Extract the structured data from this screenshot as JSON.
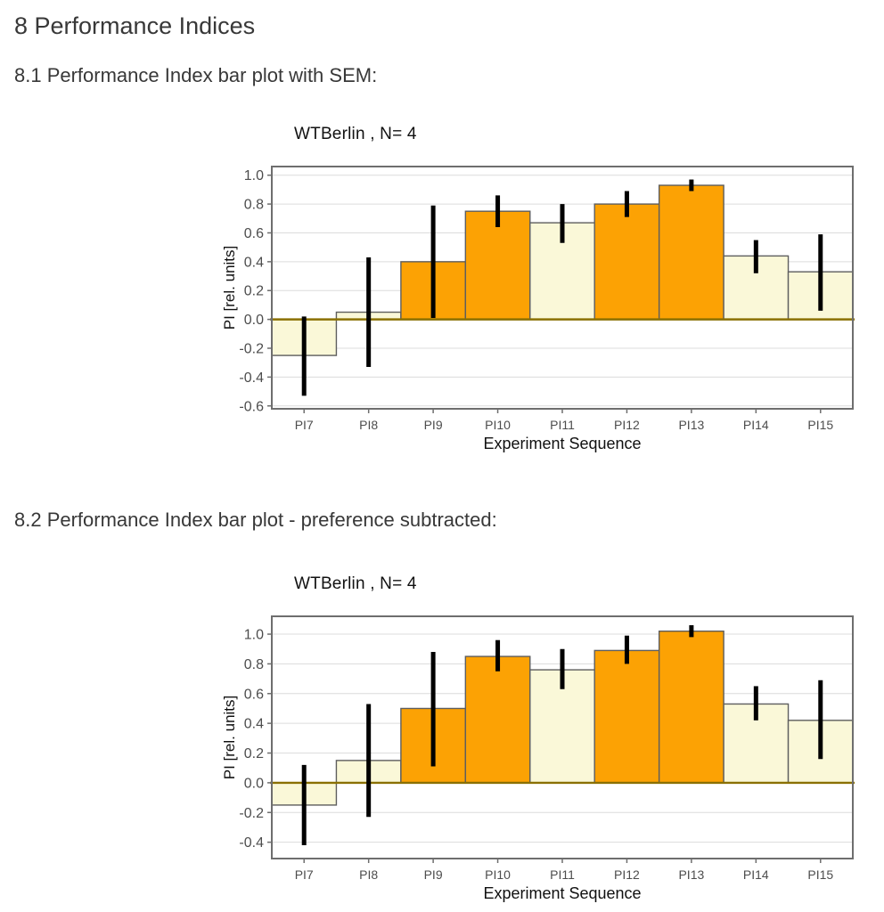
{
  "page": {
    "title": "8 Performance Indices",
    "section_1_heading": "8.1 Performance Index bar plot with SEM:",
    "section_2_heading": "8.2 Performance Index bar plot - preference subtracted:"
  },
  "colors": {
    "orange_bar": "#FCA204",
    "cream_bar": "#FAF8D8",
    "bar_border": "#5e5e5e",
    "error_bar": "#000000",
    "zero_line": "#8a7000",
    "grid_line": "#dcdcdc",
    "frame": "#6e6e6e",
    "tick_text": "#4d4d4d",
    "axis_text": "#111111"
  },
  "chart_data": [
    {
      "type": "bar",
      "title": "WTBerlin , N= 4",
      "xlabel": "Experiment Sequence",
      "ylabel": "PI [rel. units]",
      "legend": "none",
      "grid": "major-horizontal",
      "categories": [
        "PI7",
        "PI8",
        "PI9",
        "PI10",
        "PI11",
        "PI12",
        "PI13",
        "PI14",
        "PI15"
      ],
      "values": [
        -0.25,
        0.05,
        0.4,
        0.75,
        0.67,
        0.8,
        0.93,
        0.44,
        0.33
      ],
      "sem_low": [
        -0.53,
        -0.33,
        0.01,
        0.64,
        0.53,
        0.71,
        0.89,
        0.32,
        0.06
      ],
      "sem_high": [
        0.02,
        0.43,
        0.79,
        0.86,
        0.8,
        0.89,
        0.97,
        0.55,
        0.59
      ],
      "bar_palette": [
        "cream",
        "cream",
        "orange",
        "orange",
        "cream",
        "orange",
        "orange",
        "cream",
        "cream"
      ],
      "ylim": [
        -0.62,
        1.06
      ],
      "yticks": [
        -0.6,
        -0.4,
        -0.2,
        0.0,
        0.2,
        0.4,
        0.6,
        0.8,
        1.0
      ]
    },
    {
      "type": "bar",
      "title": "WTBerlin , N= 4",
      "xlabel": "Experiment Sequence",
      "ylabel": "PI [rel. units]",
      "legend": "none",
      "grid": "major-horizontal",
      "categories": [
        "PI7",
        "PI8",
        "PI9",
        "PI10",
        "PI11",
        "PI12",
        "PI13",
        "PI14",
        "PI15"
      ],
      "values": [
        -0.15,
        0.15,
        0.5,
        0.85,
        0.76,
        0.89,
        1.02,
        0.53,
        0.42
      ],
      "sem_low": [
        -0.42,
        -0.23,
        0.11,
        0.75,
        0.63,
        0.8,
        0.98,
        0.42,
        0.16
      ],
      "sem_high": [
        0.12,
        0.53,
        0.88,
        0.96,
        0.9,
        0.99,
        1.06,
        0.65,
        0.69
      ],
      "bar_palette": [
        "cream",
        "cream",
        "orange",
        "orange",
        "cream",
        "orange",
        "orange",
        "cream",
        "cream"
      ],
      "ylim": [
        -0.51,
        1.12
      ],
      "yticks": [
        -0.4,
        -0.2,
        0.0,
        0.2,
        0.4,
        0.6,
        0.8,
        1.0
      ]
    }
  ]
}
